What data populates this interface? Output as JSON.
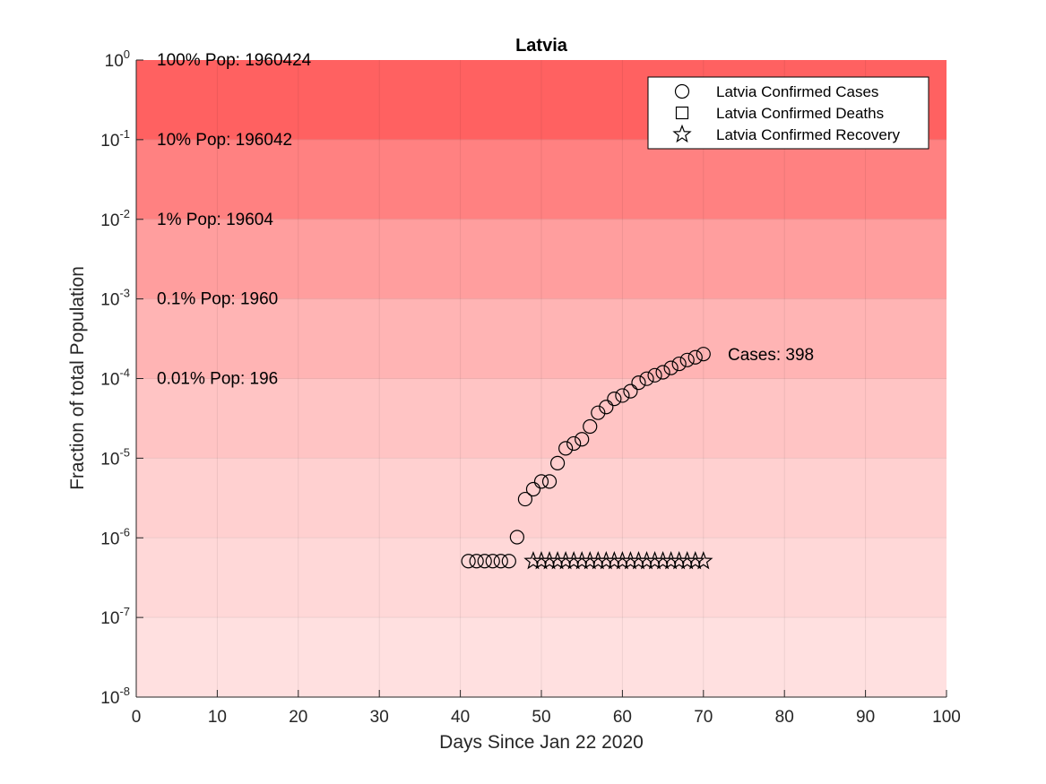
{
  "chart_data": {
    "type": "scatter",
    "title": "Latvia",
    "xlabel": "Days Since Jan 22 2020",
    "ylabel": "Fraction of total Population",
    "xlim": [
      0,
      100
    ],
    "ylim": [
      1e-08,
      1
    ],
    "yscale": "log",
    "grid": true,
    "xticks": [
      0,
      10,
      20,
      30,
      40,
      50,
      60,
      70,
      80,
      90,
      100
    ],
    "yticks": [
      {
        "base": "10",
        "exp": "-8"
      },
      {
        "base": "10",
        "exp": "-7"
      },
      {
        "base": "10",
        "exp": "-6"
      },
      {
        "base": "10",
        "exp": "-5"
      },
      {
        "base": "10",
        "exp": "-4"
      },
      {
        "base": "10",
        "exp": "-3"
      },
      {
        "base": "10",
        "exp": "-2"
      },
      {
        "base": "10",
        "exp": "-1"
      },
      {
        "base": "10",
        "exp": "0"
      }
    ],
    "band_labels": [
      "100% Pop: 1960424",
      "10% Pop: 196042",
      "1% Pop: 19604",
      "0.1% Pop: 1960",
      "0.01% Pop: 196"
    ],
    "band_colors": [
      "#ff6161",
      "#ff8181",
      "#ff9e9e",
      "#ffb4b4",
      "#ffc4c4",
      "#ffd0d0",
      "#ffd8d8",
      "#ffe0e0"
    ],
    "legend": {
      "position": "top-right",
      "entries": [
        {
          "label": "Latvia Confirmed Cases",
          "marker": "circle"
        },
        {
          "label": "Latvia Confirmed Deaths",
          "marker": "square"
        },
        {
          "label": "Latvia Confirmed Recovery",
          "marker": "star"
        }
      ]
    },
    "annotation": "Cases: 398",
    "series": [
      {
        "name": "Latvia Confirmed Cases",
        "marker": "circle",
        "x": [
          41,
          42,
          43,
          44,
          45,
          46,
          47,
          48,
          49,
          50,
          51,
          52,
          53,
          54,
          55,
          56,
          57,
          58,
          59,
          60,
          61,
          62,
          63,
          64,
          65,
          66,
          67,
          68,
          69,
          70
        ],
        "y": [
          5.1e-07,
          5.1e-07,
          5.1e-07,
          5.1e-07,
          5.1e-07,
          5.1e-07,
          1.02e-06,
          3.06e-06,
          4.08e-06,
          5.1e-06,
          5.1e-06,
          8.67e-06,
          1.33e-05,
          1.53e-05,
          1.73e-05,
          2.5e-05,
          3.72e-05,
          4.39e-05,
          5.56e-05,
          6.12e-05,
          6.94e-05,
          8.87e-05,
          9.95e-05,
          0.00011,
          0.00012,
          0.000136,
          0.000153,
          0.000171,
          0.000185,
          0.000203
        ]
      },
      {
        "name": "Latvia Confirmed Deaths",
        "marker": "square",
        "x": [],
        "y": []
      },
      {
        "name": "Latvia Confirmed Recovery",
        "marker": "star",
        "x": [
          49,
          50,
          51,
          52,
          53,
          54,
          55,
          56,
          57,
          58,
          59,
          60,
          61,
          62,
          63,
          64,
          65,
          66,
          67,
          68,
          69,
          70
        ],
        "y": [
          5.1e-07,
          5.1e-07,
          5.1e-07,
          5.1e-07,
          5.1e-07,
          5.1e-07,
          5.1e-07,
          5.1e-07,
          5.1e-07,
          5.1e-07,
          5.1e-07,
          5.1e-07,
          5.1e-07,
          5.1e-07,
          5.1e-07,
          5.1e-07,
          5.1e-07,
          5.1e-07,
          5.1e-07,
          5.1e-07,
          5.1e-07,
          5.1e-07
        ]
      }
    ]
  }
}
